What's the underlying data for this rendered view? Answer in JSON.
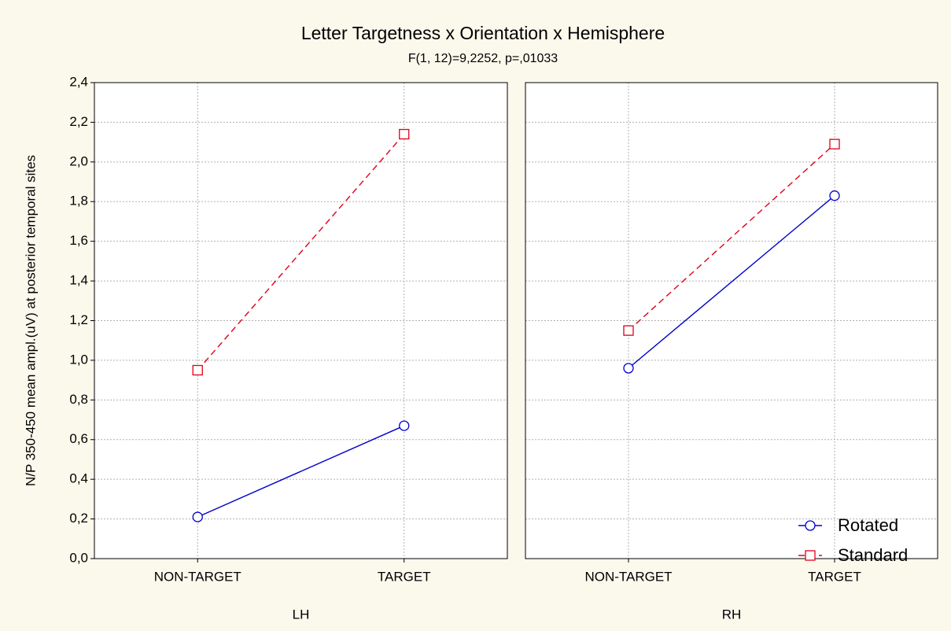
{
  "header": {
    "title": "Letter Targetness  x Orientation x Hemisphere",
    "subtitle": "F(1, 12)=9,2252, p=,01033"
  },
  "chart_data": [
    {
      "type": "line",
      "ylabel": "N/P 350-450 mean ampl.(uV) at posterior temporal sites",
      "xlabel": "LH",
      "categories": [
        "NON-TARGET",
        "TARGET"
      ],
      "ylim": [
        0,
        2.4
      ],
      "yticks": [
        {
          "value": 0,
          "label": "0,0"
        },
        {
          "value": 0.2,
          "label": "0,2"
        },
        {
          "value": 0.4,
          "label": "0,4"
        },
        {
          "value": 0.6,
          "label": "0,6"
        },
        {
          "value": 0.8,
          "label": "0,8"
        },
        {
          "value": 1.0,
          "label": "1,0"
        },
        {
          "value": 1.2,
          "label": "1,2"
        },
        {
          "value": 1.4,
          "label": "1,4"
        },
        {
          "value": 1.6,
          "label": "1,6"
        },
        {
          "value": 1.8,
          "label": "1,8"
        },
        {
          "value": 2.0,
          "label": "2,0"
        },
        {
          "value": 2.2,
          "label": "2,2"
        },
        {
          "value": 2.4,
          "label": "2,4"
        }
      ],
      "grid": true,
      "series": [
        {
          "color": "#0000cc",
          "values": [
            0.21,
            0.67
          ]
        },
        {
          "color": "#e0001a",
          "values": [
            0.95,
            2.14
          ]
        }
      ]
    },
    {
      "type": "line",
      "xlabel": "RH",
      "categories": [
        "NON-TARGET",
        "TARGET"
      ],
      "ylim": [
        0,
        2.4
      ],
      "yticks": [
        0,
        0.2,
        0.4,
        0.6,
        0.8,
        1,
        1.2,
        1.4,
        1.6,
        1.8,
        2,
        2.2,
        2.4
      ],
      "grid": true,
      "legend": "lower right",
      "series": [
        {
          "name": "Rotated",
          "color": "#0000cc",
          "values": [
            0.96,
            1.83
          ]
        },
        {
          "name": "Standard",
          "color": "#e0001a",
          "values": [
            1.15,
            2.09
          ]
        }
      ]
    }
  ]
}
